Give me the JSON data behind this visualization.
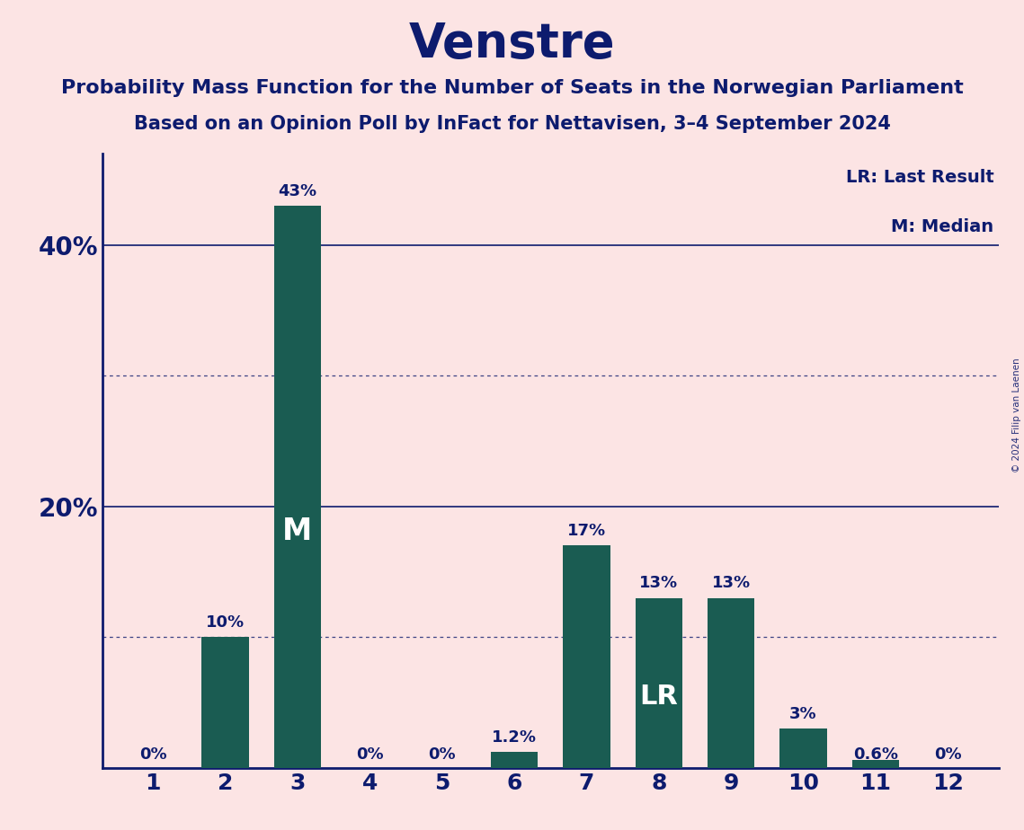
{
  "title": "Venstre",
  "subtitle1": "Probability Mass Function for the Number of Seats in the Norwegian Parliament",
  "subtitle2": "Based on an Opinion Poll by InFact for Nettavisen, 3–4 September 2024",
  "watermark": "© 2024 Filip van Laenen",
  "categories": [
    1,
    2,
    3,
    4,
    5,
    6,
    7,
    8,
    9,
    10,
    11,
    12
  ],
  "values": [
    0,
    10,
    43,
    0,
    0,
    1.2,
    17,
    13,
    13,
    3,
    0.6,
    0
  ],
  "bar_color": "#1a5c52",
  "background_color": "#fce4e4",
  "text_color": "#0d1b6e",
  "bar_labels": [
    "0%",
    "10%",
    "43%",
    "0%",
    "0%",
    "1.2%",
    "17%",
    "13%",
    "13%",
    "3%",
    "0.6%",
    "0%"
  ],
  "median_bar_idx": 2,
  "lr_bar_idx": 7,
  "median_label": "M",
  "lr_label": "LR",
  "legend_lr": "LR: Last Result",
  "legend_m": "M: Median",
  "yticks": [
    20,
    40
  ],
  "ytick_labels": [
    "20%",
    "40%"
  ],
  "ylim": [
    0,
    47
  ],
  "dotted_lines": [
    10,
    30
  ],
  "solid_lines": [
    20,
    40
  ],
  "title_fontsize": 38,
  "subtitle1_fontsize": 16,
  "subtitle2_fontsize": 15,
  "bar_label_fontsize": 13,
  "ytick_fontsize": 20,
  "xtick_fontsize": 18,
  "legend_fontsize": 14,
  "median_fontsize": 24,
  "lr_fontsize": 22,
  "watermark_fontsize": 7.5
}
